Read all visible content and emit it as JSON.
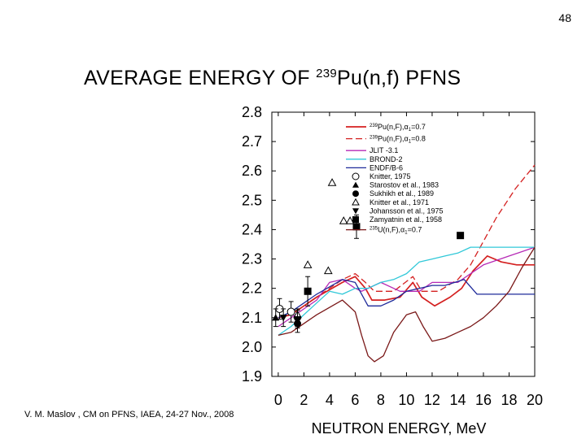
{
  "slide_number": "48",
  "title": {
    "main": "AVERAGE ENERGY OF ",
    "sup": "239",
    "rest": "Pu(n,f) PFNS"
  },
  "footer": "V. M. Maslov ,   CM on PFNS, IAEA, 24-27 Nov., 2008",
  "chart_data": {
    "type": "line",
    "title": "AVERAGE ENERGY OF 239Pu(n,f) PFNS",
    "xlabel": "NEUTRON ENERGY, MeV",
    "ylabel": "",
    "xlim": [
      -0.5,
      20
    ],
    "ylim": [
      1.9,
      2.8
    ],
    "xticks": [
      "0",
      "2",
      "4",
      "6",
      "8",
      "10",
      "12",
      "14",
      "16",
      "18",
      "20"
    ],
    "yticks": [
      "1.9",
      "2.0",
      "2.1",
      "2.2",
      "2.3",
      "2.4",
      "2.5",
      "2.6",
      "2.7",
      "2.8"
    ],
    "grid": false,
    "legend_position": "top-right",
    "series": [
      {
        "name": "239Pu(n,F),α1=0.7",
        "legend_prefix": "239",
        "legend_rest": "Pu(n,F),α",
        "legend_sub": "1",
        "legend_suffix": "=0.7",
        "color": "#d42020",
        "dash": "",
        "width": 1.7,
        "points": [
          [
            0,
            2.1
          ],
          [
            1,
            2.11
          ],
          [
            3,
            2.17
          ],
          [
            5,
            2.22
          ],
          [
            6,
            2.24
          ],
          [
            6.8,
            2.2
          ],
          [
            7.3,
            2.16
          ],
          [
            8.3,
            2.16
          ],
          [
            9.5,
            2.17
          ],
          [
            10.5,
            2.22
          ],
          [
            11.2,
            2.17
          ],
          [
            12.2,
            2.14
          ],
          [
            13.4,
            2.17
          ],
          [
            14.3,
            2.2
          ],
          [
            15.2,
            2.26
          ],
          [
            16.3,
            2.31
          ],
          [
            17.4,
            2.29
          ],
          [
            18.6,
            2.28
          ],
          [
            20,
            2.28
          ]
        ]
      },
      {
        "name": "239Pu(n,F),α1=0.8",
        "legend_prefix": "239",
        "legend_rest": "Pu(n,F),α",
        "legend_sub": "1",
        "legend_suffix": "=0.8",
        "color": "#d42020",
        "dash": "8,4",
        "width": 1.3,
        "points": [
          [
            0,
            2.1
          ],
          [
            1,
            2.11
          ],
          [
            3,
            2.17
          ],
          [
            5,
            2.23
          ],
          [
            6,
            2.25
          ],
          [
            6.8,
            2.22
          ],
          [
            7.5,
            2.19
          ],
          [
            9,
            2.19
          ],
          [
            10.5,
            2.24
          ],
          [
            11.2,
            2.19
          ],
          [
            12.5,
            2.19
          ],
          [
            14,
            2.23
          ],
          [
            15,
            2.28
          ],
          [
            17,
            2.44
          ],
          [
            18.5,
            2.54
          ],
          [
            20,
            2.62
          ]
        ]
      },
      {
        "name": "JLIT -3.1",
        "color": "#b62ab6",
        "dash": "",
        "width": 1.3,
        "points": [
          [
            0,
            2.07
          ],
          [
            1,
            2.1
          ],
          [
            3,
            2.16
          ],
          [
            4,
            2.22
          ],
          [
            5,
            2.23
          ],
          [
            6,
            2.2
          ],
          [
            6.5,
            2.19
          ],
          [
            8,
            2.22
          ],
          [
            9.5,
            2.19
          ],
          [
            11,
            2.19
          ],
          [
            12,
            2.22
          ],
          [
            14,
            2.22
          ],
          [
            16,
            2.28
          ],
          [
            18,
            2.31
          ],
          [
            20,
            2.34
          ]
        ]
      },
      {
        "name": "BROND-2",
        "color": "#30c8d8",
        "dash": "",
        "width": 1.3,
        "points": [
          [
            0,
            2.04
          ],
          [
            1,
            2.07
          ],
          [
            3,
            2.15
          ],
          [
            4,
            2.19
          ],
          [
            5,
            2.18
          ],
          [
            6,
            2.2
          ],
          [
            7,
            2.2
          ],
          [
            8,
            2.22
          ],
          [
            9,
            2.23
          ],
          [
            10,
            2.25
          ],
          [
            11,
            2.29
          ],
          [
            12,
            2.3
          ],
          [
            13,
            2.31
          ],
          [
            14,
            2.32
          ],
          [
            15,
            2.34
          ],
          [
            20,
            2.34
          ]
        ]
      },
      {
        "name": "ENDF/B-6",
        "color": "#1e2a9a",
        "dash": "",
        "width": 1.3,
        "points": [
          [
            0,
            2.1
          ],
          [
            1,
            2.12
          ],
          [
            3,
            2.18
          ],
          [
            5,
            2.23
          ],
          [
            6,
            2.22
          ],
          [
            7,
            2.14
          ],
          [
            8,
            2.14
          ],
          [
            9,
            2.16
          ],
          [
            10,
            2.19
          ],
          [
            11,
            2.2
          ],
          [
            12,
            2.21
          ],
          [
            13,
            2.21
          ],
          [
            14.5,
            2.23
          ],
          [
            15.5,
            2.18
          ],
          [
            16.5,
            2.18
          ],
          [
            20,
            2.18
          ]
        ]
      },
      {
        "name": "235U(n,F),α1=0.7",
        "legend_prefix": "235",
        "legend_rest": "U(n,F),α",
        "legend_sub": "1",
        "legend_suffix": "=0.7",
        "color": "#7a1818",
        "dash": "",
        "width": 1.3,
        "points": [
          [
            0,
            2.04
          ],
          [
            1,
            2.05
          ],
          [
            3,
            2.11
          ],
          [
            5,
            2.16
          ],
          [
            6,
            2.12
          ],
          [
            6.5,
            2.04
          ],
          [
            7,
            1.97
          ],
          [
            7.5,
            1.95
          ],
          [
            8.2,
            1.97
          ],
          [
            9,
            2.05
          ],
          [
            10,
            2.11
          ],
          [
            10.7,
            2.12
          ],
          [
            11.3,
            2.07
          ],
          [
            12,
            2.02
          ],
          [
            13,
            2.03
          ],
          [
            14,
            2.05
          ],
          [
            15,
            2.07
          ],
          [
            16,
            2.1
          ],
          [
            17,
            2.14
          ],
          [
            18,
            2.19
          ],
          [
            19,
            2.27
          ],
          [
            20,
            2.34
          ]
        ]
      }
    ],
    "markers": [
      {
        "name": "Knitter, 1975",
        "symbol": "circle-open",
        "points": [
          [
            0.1,
            2.13,
            0.035
          ],
          [
            1,
            2.12,
            0.035
          ]
        ]
      },
      {
        "name": "Starostov et al., 1983",
        "symbol": "triangle-filled",
        "points": [
          [
            -0.2,
            2.1,
            0.03
          ]
        ]
      },
      {
        "name": "Sukhikh et al., 1989",
        "symbol": "circle-filled",
        "points": [
          [
            1.5,
            2.1,
            0.03
          ],
          [
            1.5,
            2.08,
            0.03
          ]
        ]
      },
      {
        "name": "Knitter et al., 1971",
        "symbol": "triangle-open",
        "points": [
          [
            4.2,
            2.56,
            0
          ],
          [
            2.3,
            2.28,
            0
          ],
          [
            3.9,
            2.26,
            0
          ],
          [
            5.1,
            2.43,
            0
          ],
          [
            5.6,
            2.43,
            0
          ],
          [
            1.5,
            2.11,
            0
          ]
        ]
      },
      {
        "name": "Johansson et al., 1975",
        "symbol": "triangle-down-filled",
        "points": [
          [
            0.4,
            2.1,
            0.03
          ],
          [
            1.5,
            2.095,
            0.03
          ]
        ]
      },
      {
        "name": "Zamyatnin et al., 1958",
        "symbol": "square-filled",
        "points": [
          [
            14.2,
            2.38,
            0
          ],
          [
            6.1,
            2.41,
            0.04
          ],
          [
            2.3,
            2.19,
            0.05
          ]
        ]
      }
    ]
  }
}
